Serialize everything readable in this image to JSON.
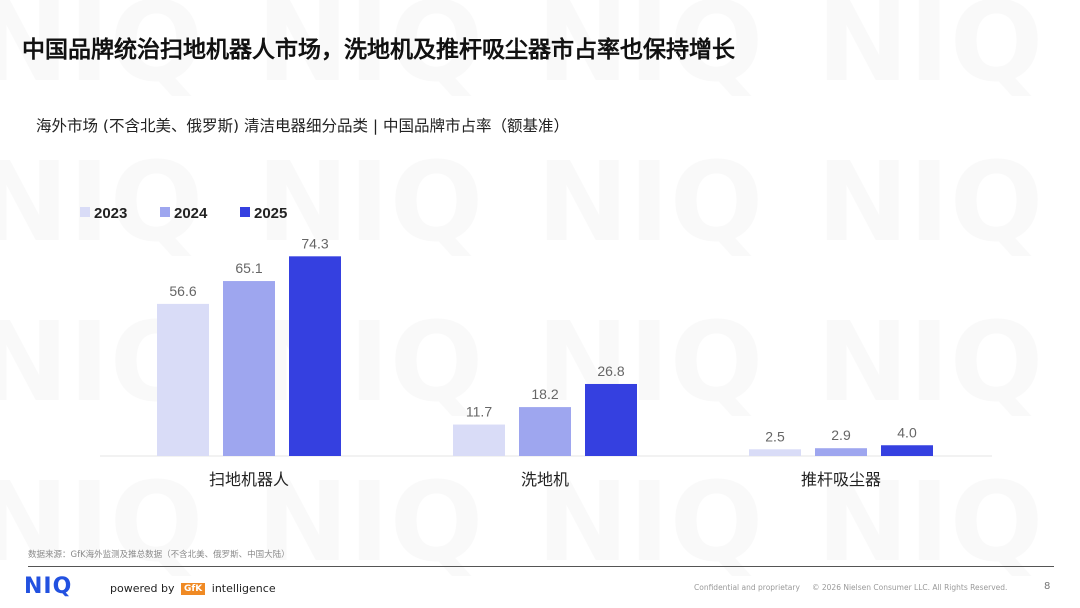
{
  "page": {
    "title": "中国品牌统治扫地机器人市场，洗地机及推杆吸尘器市占率也保持增长",
    "subtitle": "海外市场 (不含北美、俄罗斯) 清洁电器细分品类 | 中国品牌市占率（额基准）",
    "watermark_text": "NIQ"
  },
  "chart_data": {
    "type": "bar",
    "title": "海外市场 (不含北美、俄罗斯) 清洁电器细分品类 | 中国品牌市占率（额基准）",
    "categories": [
      "扫地机器人",
      "洗地机",
      "推杆吸尘器"
    ],
    "series": [
      {
        "name": "2023",
        "values": [
          56.6,
          11.7,
          2.5
        ],
        "color": "#d9dcf7"
      },
      {
        "name": "2024",
        "values": [
          65.1,
          18.2,
          2.9
        ],
        "color": "#9ea6ef"
      },
      {
        "name": "2025",
        "values": [
          74.3,
          26.8,
          4.0
        ],
        "color": "#3540e0"
      }
    ],
    "value_labels": [
      [
        "56.6",
        "11.7",
        "2.5"
      ],
      [
        "65.1",
        "18.2",
        "2.9"
      ],
      [
        "74.3",
        "26.8",
        "4.0"
      ]
    ],
    "ylim": [
      0,
      80
    ],
    "xlabel": "",
    "ylabel": "",
    "grid": false,
    "legend": "top-left"
  },
  "footer": {
    "source": "数据来源：GfK海外监测及推总数据（不含北美、俄罗斯、中国大陆）",
    "logo": "NIQ",
    "powered_by": "powered by",
    "gfk_badge": "GfK",
    "intelligence": "intelligence",
    "confidential": "Confidential and proprietary",
    "copyright": "© 2026 Nielsen Consumer LLC. All Rights Reserved.",
    "page_number": "8"
  },
  "colors": {
    "accent": "#2251e0",
    "series_2023": "#d9dcf7",
    "series_2024": "#9ea6ef",
    "series_2025": "#3540e0"
  }
}
